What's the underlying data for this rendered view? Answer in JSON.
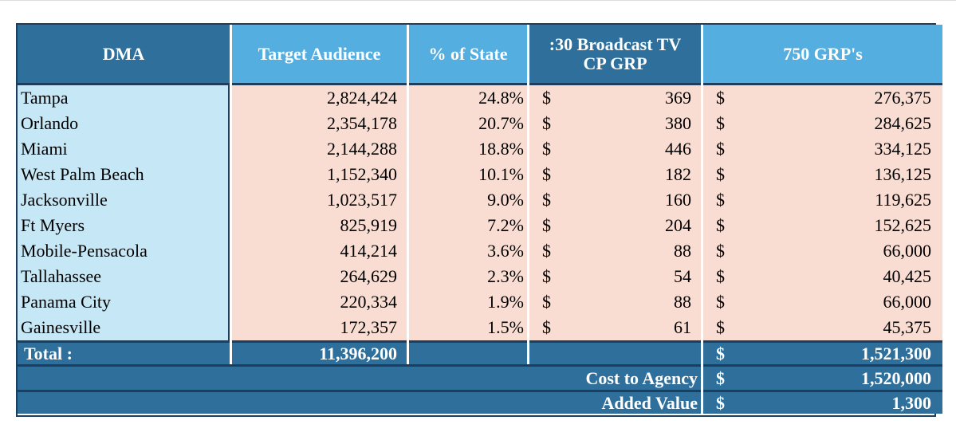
{
  "table": {
    "headers": {
      "dma": "DMA",
      "target_audience": "Target Audience",
      "pct_state": "% of State",
      "broadcast_line1": ":30 Broadcast TV",
      "broadcast_line2": "CP GRP",
      "grps": "750 GRP's"
    },
    "currency_symbol": "$",
    "rows": [
      {
        "dma": "Tampa",
        "audience": "2,824,424",
        "pct": "24.8%",
        "cp_grp": "369",
        "cost": "276,375"
      },
      {
        "dma": "Orlando",
        "audience": "2,354,178",
        "pct": "20.7%",
        "cp_grp": "380",
        "cost": "284,625"
      },
      {
        "dma": "Miami",
        "audience": "2,144,288",
        "pct": "18.8%",
        "cp_grp": "446",
        "cost": "334,125"
      },
      {
        "dma": "West Palm Beach",
        "audience": "1,152,340",
        "pct": "10.1%",
        "cp_grp": "182",
        "cost": "136,125"
      },
      {
        "dma": "Jacksonville",
        "audience": "1,023,517",
        "pct": "9.0%",
        "cp_grp": "160",
        "cost": "119,625"
      },
      {
        "dma": "Ft Myers",
        "audience": "825,919",
        "pct": "7.2%",
        "cp_grp": "204",
        "cost": "152,625"
      },
      {
        "dma": "Mobile-Pensacola",
        "audience": "414,214",
        "pct": "3.6%",
        "cp_grp": "88",
        "cost": "66,000"
      },
      {
        "dma": "Tallahassee",
        "audience": "264,629",
        "pct": "2.3%",
        "cp_grp": "54",
        "cost": "40,425"
      },
      {
        "dma": "Panama City",
        "audience": "220,334",
        "pct": "1.9%",
        "cp_grp": "88",
        "cost": "66,000"
      },
      {
        "dma": "Gainesville",
        "audience": "172,357",
        "pct": "1.5%",
        "cp_grp": "61",
        "cost": "45,375"
      }
    ],
    "total": {
      "label": "Total  :",
      "audience": "11,396,200",
      "cost": "1,521,300"
    },
    "cost_to_agency": {
      "label": "Cost to Agency",
      "value": "1,520,000"
    },
    "added_value": {
      "label": "Added Value",
      "value": "1,300"
    }
  }
}
